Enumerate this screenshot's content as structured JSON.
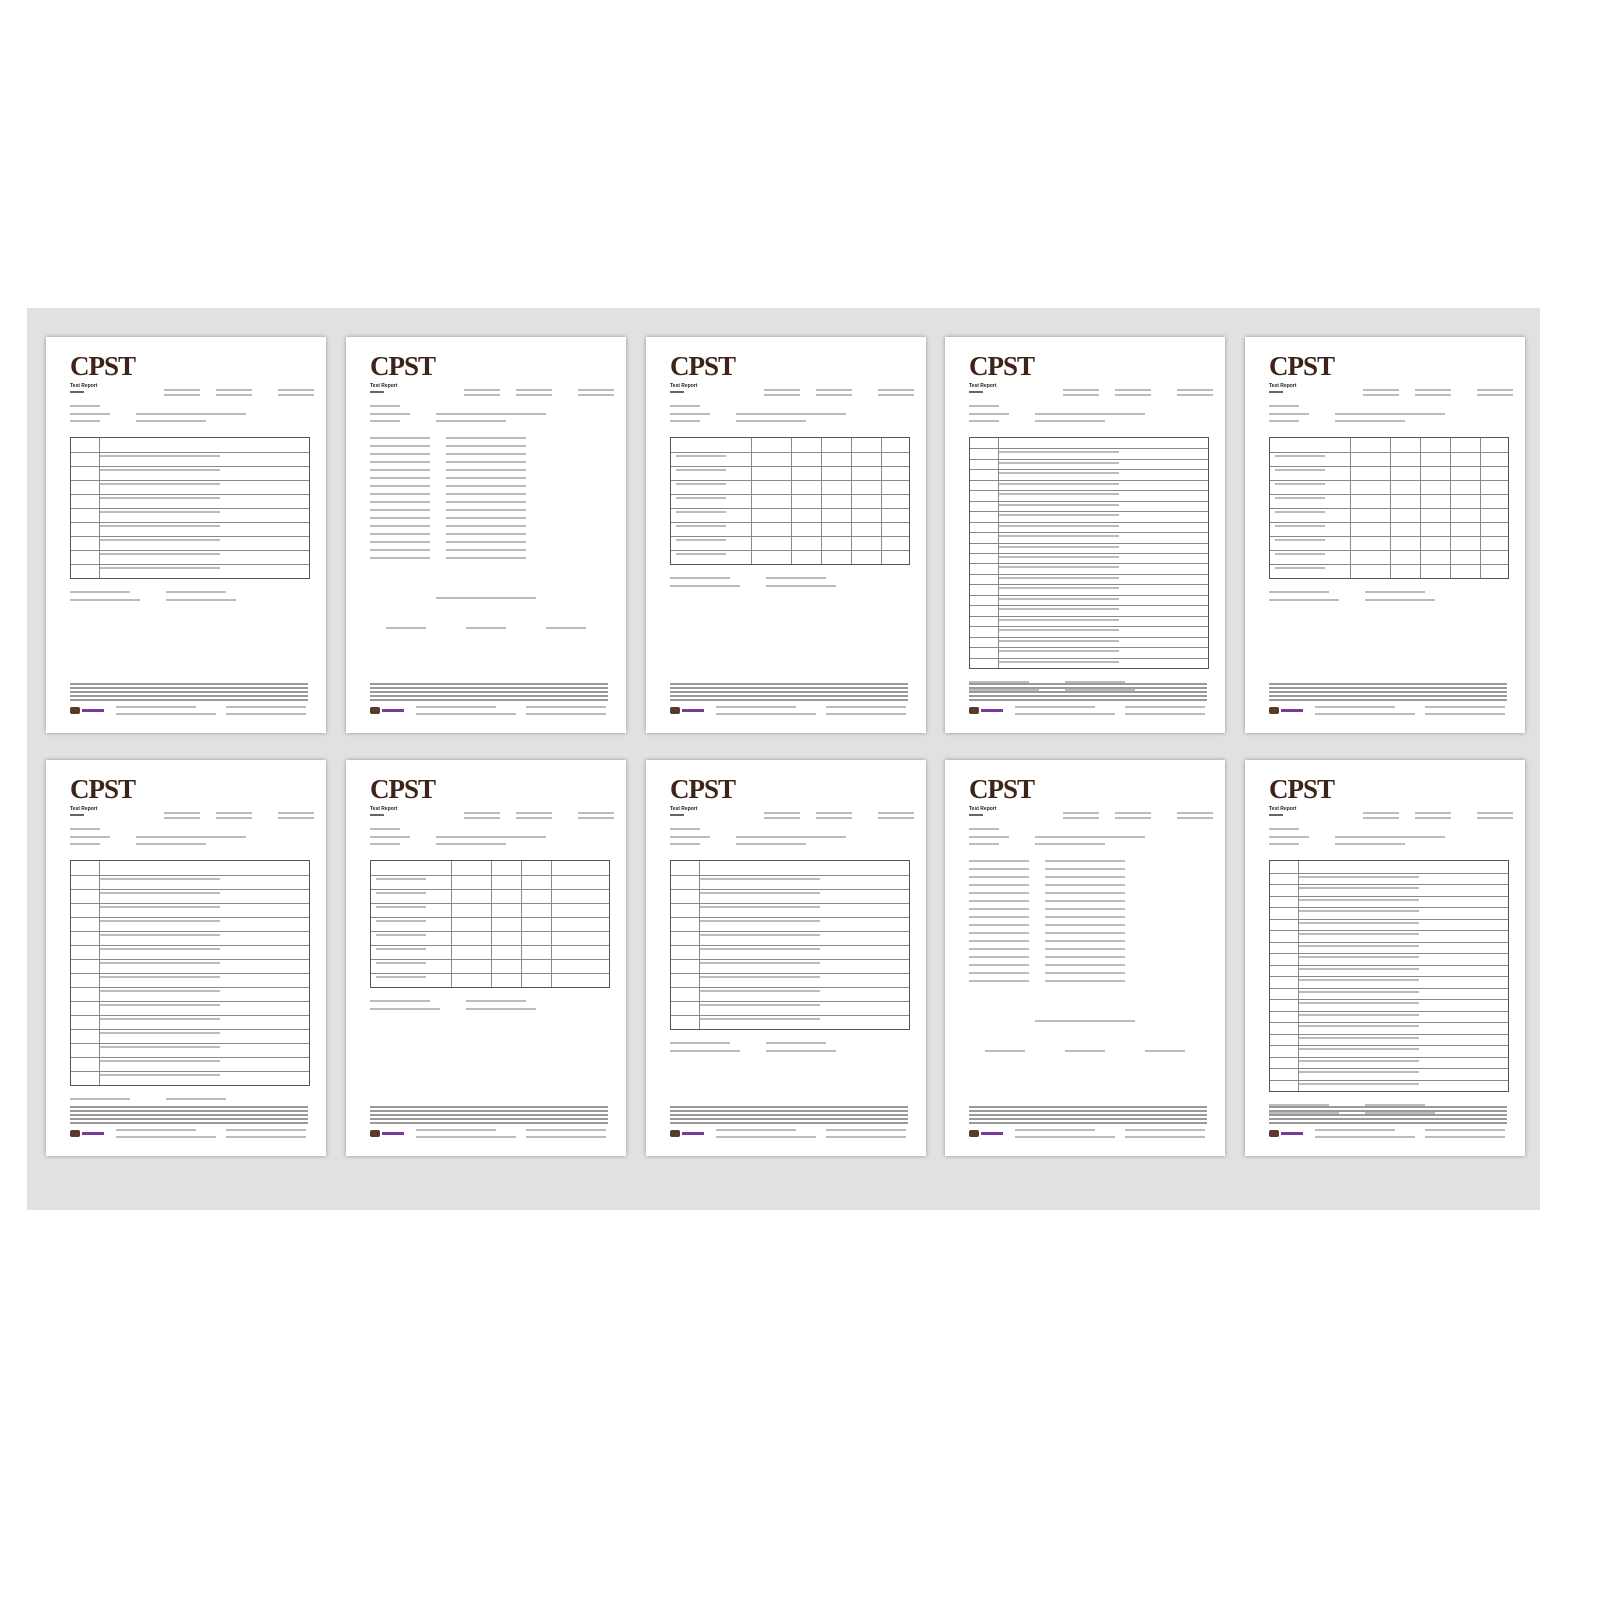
{
  "pages": [
    {
      "logo": "CPST",
      "subtitle": "Test Report",
      "rows": 10,
      "cols": 2
    },
    {
      "logo": "CPST",
      "subtitle": "Test Report",
      "rows": 0,
      "cols": 0
    },
    {
      "logo": "CPST",
      "subtitle": "Test Report",
      "rows": 9,
      "cols": 6
    },
    {
      "logo": "CPST",
      "subtitle": "Test Report",
      "rows": 22,
      "cols": 2
    },
    {
      "logo": "CPST",
      "subtitle": "Test Report",
      "rows": 10,
      "cols": 6
    },
    {
      "logo": "CPST",
      "subtitle": "Test Report",
      "rows": 16,
      "cols": 2
    },
    {
      "logo": "CPST",
      "subtitle": "Test Report",
      "rows": 9,
      "cols": 5
    },
    {
      "logo": "CPST",
      "subtitle": "Test Report",
      "rows": 12,
      "cols": 2
    },
    {
      "logo": "CPST",
      "subtitle": "Test Report",
      "rows": 0,
      "cols": 0
    },
    {
      "logo": "CPST",
      "subtitle": "Test Report",
      "rows": 20,
      "cols": 2
    }
  ],
  "colors": {
    "logo": "#3e2418",
    "background_band": "#e1e1e1",
    "footer_accent": "#7a3a9a"
  }
}
